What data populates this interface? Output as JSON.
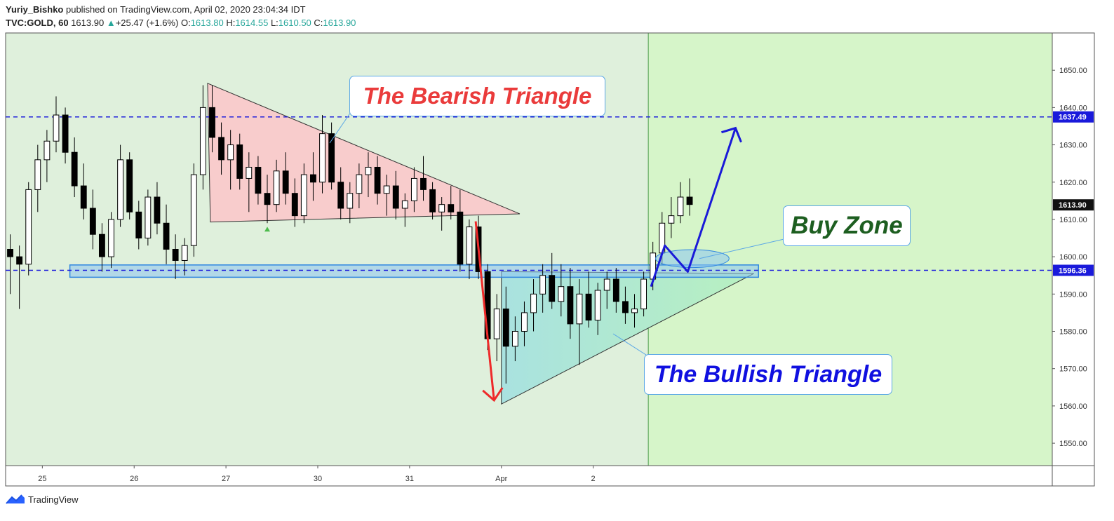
{
  "header": {
    "author": "Yuriy_Bishko",
    "published_text": " published on TradingView.com, April 02, 2020 23:04:34 IDT",
    "symbol": "TVC:GOLD, 60",
    "last": "1613.90",
    "change": "+25.47 (+1.6%)",
    "o_label": "O:",
    "o_value": "1613.80",
    "h_label": "H:",
    "h_value": "1614.55",
    "l_label": "L:",
    "l_value": "1610.50",
    "c_label": "C:",
    "c_value": "1613.90"
  },
  "annotations": {
    "bearish": "The Bearish Triangle",
    "buy_zone": "Buy Zone",
    "bullish": "The Bullish Triangle"
  },
  "footer": {
    "brand": "TradingView"
  },
  "colors": {
    "bg_green": "#dff0dc",
    "projection_green": "#d6f5c9",
    "bear_fill": "#f8cccc",
    "bull_fill": "#aee6e0",
    "level_line": "#1a1adb",
    "badge_blue": "#1a1adb",
    "price_badge": "#111111",
    "arrow_red": "#ee2a2a",
    "arrow_blue": "#1a1ad8"
  },
  "chart_data": {
    "type": "candlestick",
    "y_axis": {
      "ticks": [
        1550,
        1560,
        1570,
        1580,
        1590,
        1600,
        1610,
        1620,
        1630,
        1640,
        1650
      ],
      "tick_labels": [
        "1550.00",
        "1560.00",
        "1570.00",
        "1580.00",
        "1590.00",
        "1600.00",
        "1610.00",
        "1620.00",
        "1630.00",
        "1640.00",
        "1650.00"
      ],
      "range": [
        1544,
        1660
      ]
    },
    "x_axis": {
      "labels": [
        "25",
        "26",
        "27",
        "30",
        "31",
        "Apr",
        "2"
      ],
      "range": [
        0,
        114
      ],
      "label_positions": [
        4,
        14,
        24,
        34,
        44,
        54,
        64
      ]
    },
    "levels": [
      {
        "value": 1637.49,
        "label": "1637.49",
        "style": "dashed"
      },
      {
        "value": 1596.36,
        "label": "1596.36",
        "style": "dashed"
      }
    ],
    "last_price": {
      "value": 1613.9,
      "label": "1613.90"
    },
    "support_zone": {
      "x": [
        7,
        82
      ],
      "y": [
        1594.5,
        1597.8
      ]
    },
    "projection_start_x": 70,
    "bearish_triangle": [
      [
        22,
        1646.5
      ],
      [
        56,
        1611.5
      ],
      [
        22.3,
        1609.3
      ]
    ],
    "bullish_triangle": [
      [
        54,
        1596
      ],
      [
        81.5,
        1595.5
      ],
      [
        54,
        1560.5
      ]
    ],
    "red_arrow": [
      [
        51.2,
        1609.5
      ],
      [
        53.2,
        1561.5
      ]
    ],
    "blue_path": [
      [
        70.3,
        1592
      ],
      [
        71.8,
        1603
      ],
      [
        74.3,
        1596
      ],
      [
        79.5,
        1634.5
      ]
    ],
    "buy_ellipse": {
      "cx": 74.8,
      "cy": 1599.5,
      "rx": 4,
      "ry": 2.4
    },
    "candles": [
      {
        "o": 1602,
        "h": 1606,
        "l": 1590,
        "c": 1600
      },
      {
        "o": 1600,
        "h": 1603,
        "l": 1586,
        "c": 1598
      },
      {
        "o": 1598,
        "h": 1620,
        "l": 1595,
        "c": 1618
      },
      {
        "o": 1618,
        "h": 1630,
        "l": 1612,
        "c": 1626
      },
      {
        "o": 1626,
        "h": 1634,
        "l": 1620,
        "c": 1631
      },
      {
        "o": 1631,
        "h": 1643,
        "l": 1628,
        "c": 1638
      },
      {
        "o": 1638,
        "h": 1640,
        "l": 1625,
        "c": 1628
      },
      {
        "o": 1628,
        "h": 1632,
        "l": 1616,
        "c": 1619
      },
      {
        "o": 1619,
        "h": 1625,
        "l": 1610,
        "c": 1613
      },
      {
        "o": 1613,
        "h": 1618,
        "l": 1602,
        "c": 1606
      },
      {
        "o": 1606,
        "h": 1609,
        "l": 1596,
        "c": 1600
      },
      {
        "o": 1600,
        "h": 1612,
        "l": 1597,
        "c": 1610
      },
      {
        "o": 1610,
        "h": 1630,
        "l": 1608,
        "c": 1626
      },
      {
        "o": 1626,
        "h": 1628,
        "l": 1610,
        "c": 1612
      },
      {
        "o": 1612,
        "h": 1615,
        "l": 1602,
        "c": 1605
      },
      {
        "o": 1605,
        "h": 1618,
        "l": 1603,
        "c": 1616
      },
      {
        "o": 1616,
        "h": 1620,
        "l": 1606,
        "c": 1609
      },
      {
        "o": 1609,
        "h": 1614,
        "l": 1598,
        "c": 1602
      },
      {
        "o": 1602,
        "h": 1606,
        "l": 1594,
        "c": 1599
      },
      {
        "o": 1599,
        "h": 1605,
        "l": 1595,
        "c": 1603
      },
      {
        "o": 1603,
        "h": 1625,
        "l": 1600,
        "c": 1622
      },
      {
        "o": 1622,
        "h": 1646,
        "l": 1618,
        "c": 1640
      },
      {
        "o": 1640,
        "h": 1646,
        "l": 1628,
        "c": 1632
      },
      {
        "o": 1632,
        "h": 1636,
        "l": 1622,
        "c": 1626
      },
      {
        "o": 1626,
        "h": 1634,
        "l": 1618,
        "c": 1630
      },
      {
        "o": 1630,
        "h": 1633,
        "l": 1618,
        "c": 1621
      },
      {
        "o": 1621,
        "h": 1628,
        "l": 1612,
        "c": 1624
      },
      {
        "o": 1624,
        "h": 1627,
        "l": 1614,
        "c": 1617
      },
      {
        "o": 1617,
        "h": 1622,
        "l": 1609,
        "c": 1614
      },
      {
        "o": 1614,
        "h": 1626,
        "l": 1612,
        "c": 1623
      },
      {
        "o": 1623,
        "h": 1628,
        "l": 1614,
        "c": 1617
      },
      {
        "o": 1617,
        "h": 1621,
        "l": 1608,
        "c": 1611
      },
      {
        "o": 1611,
        "h": 1625,
        "l": 1609,
        "c": 1622
      },
      {
        "o": 1622,
        "h": 1628,
        "l": 1615,
        "c": 1620
      },
      {
        "o": 1620,
        "h": 1638,
        "l": 1617,
        "c": 1633
      },
      {
        "o": 1633,
        "h": 1636,
        "l": 1618,
        "c": 1620
      },
      {
        "o": 1620,
        "h": 1624,
        "l": 1610,
        "c": 1613
      },
      {
        "o": 1613,
        "h": 1620,
        "l": 1609,
        "c": 1617
      },
      {
        "o": 1617,
        "h": 1625,
        "l": 1613,
        "c": 1622
      },
      {
        "o": 1622,
        "h": 1628,
        "l": 1616,
        "c": 1624
      },
      {
        "o": 1624,
        "h": 1627,
        "l": 1614,
        "c": 1617
      },
      {
        "o": 1617,
        "h": 1622,
        "l": 1611,
        "c": 1619
      },
      {
        "o": 1619,
        "h": 1623,
        "l": 1610,
        "c": 1613
      },
      {
        "o": 1613,
        "h": 1617,
        "l": 1608,
        "c": 1615
      },
      {
        "o": 1615,
        "h": 1624,
        "l": 1612,
        "c": 1621
      },
      {
        "o": 1621,
        "h": 1627,
        "l": 1615,
        "c": 1618
      },
      {
        "o": 1618,
        "h": 1620,
        "l": 1610,
        "c": 1612
      },
      {
        "o": 1612,
        "h": 1616,
        "l": 1607,
        "c": 1614
      },
      {
        "o": 1614,
        "h": 1619,
        "l": 1610,
        "c": 1612
      },
      {
        "o": 1612,
        "h": 1618,
        "l": 1596,
        "c": 1598
      },
      {
        "o": 1598,
        "h": 1610,
        "l": 1594,
        "c": 1608
      },
      {
        "o": 1608,
        "h": 1611,
        "l": 1594,
        "c": 1596
      },
      {
        "o": 1596,
        "h": 1598,
        "l": 1575,
        "c": 1578
      },
      {
        "o": 1578,
        "h": 1590,
        "l": 1572,
        "c": 1586
      },
      {
        "o": 1586,
        "h": 1592,
        "l": 1566,
        "c": 1576
      },
      {
        "o": 1576,
        "h": 1584,
        "l": 1572,
        "c": 1580
      },
      {
        "o": 1580,
        "h": 1588,
        "l": 1576,
        "c": 1585
      },
      {
        "o": 1585,
        "h": 1594,
        "l": 1580,
        "c": 1590
      },
      {
        "o": 1590,
        "h": 1598,
        "l": 1585,
        "c": 1595
      },
      {
        "o": 1595,
        "h": 1601,
        "l": 1586,
        "c": 1588
      },
      {
        "o": 1588,
        "h": 1598,
        "l": 1584,
        "c": 1592
      },
      {
        "o": 1592,
        "h": 1597,
        "l": 1578,
        "c": 1582
      },
      {
        "o": 1582,
        "h": 1594,
        "l": 1571,
        "c": 1590
      },
      {
        "o": 1590,
        "h": 1596,
        "l": 1581,
        "c": 1583
      },
      {
        "o": 1583,
        "h": 1593,
        "l": 1579,
        "c": 1591
      },
      {
        "o": 1591,
        "h": 1596,
        "l": 1586,
        "c": 1594
      },
      {
        "o": 1594,
        "h": 1597,
        "l": 1585,
        "c": 1588
      },
      {
        "o": 1588,
        "h": 1592,
        "l": 1582,
        "c": 1585
      },
      {
        "o": 1585,
        "h": 1590,
        "l": 1581,
        "c": 1586
      },
      {
        "o": 1586,
        "h": 1596,
        "l": 1584,
        "c": 1594
      },
      {
        "o": 1594,
        "h": 1604,
        "l": 1591,
        "c": 1601
      },
      {
        "o": 1601,
        "h": 1612,
        "l": 1598,
        "c": 1609
      },
      {
        "o": 1609,
        "h": 1616,
        "l": 1605,
        "c": 1611
      },
      {
        "o": 1611,
        "h": 1620,
        "l": 1609,
        "c": 1616
      },
      {
        "o": 1616,
        "h": 1621,
        "l": 1611,
        "c": 1614
      }
    ]
  }
}
